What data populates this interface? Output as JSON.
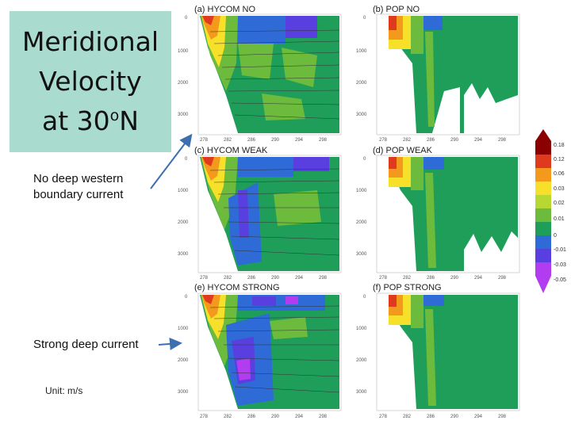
{
  "title": {
    "line1": "Meridional",
    "line2": "Velocity",
    "line3_prefix": "at 30",
    "line3_sup": "o",
    "line3_suffix": "N"
  },
  "notes": {
    "no_deep": [
      "No deep western",
      "boundary current"
    ],
    "strong": "Strong deep current",
    "unit": "Unit: m/s"
  },
  "panels": [
    {
      "id": "a",
      "label": "(a) HYCOM NO"
    },
    {
      "id": "b",
      "label": "(b) POP NO"
    },
    {
      "id": "c",
      "label": "(c) HYCOM WEAK"
    },
    {
      "id": "d",
      "label": "(d) POP WEAK"
    },
    {
      "id": "e",
      "label": "(e) HYCOM STRONG"
    },
    {
      "id": "f",
      "label": "(f) POP STRONG"
    }
  ],
  "depth_ticks": [
    "0",
    "1000",
    "2000",
    "3000"
  ],
  "lon_ticks_hycom": [
    "278",
    "282",
    "286",
    "290",
    "294",
    "298"
  ],
  "lon_ticks_pop": [
    "278",
    "282",
    "286",
    "290",
    "294",
    "298"
  ],
  "colorbar": {
    "labels": [
      "0.18",
      "0.12",
      "0.06",
      "0.03",
      "0.02",
      "0.01",
      "0",
      "-0.01",
      "-0.03",
      "-0.05"
    ],
    "colors": [
      "#8b0000",
      "#e03a1e",
      "#f39a1c",
      "#f7e02a",
      "#b7d832",
      "#6dbb3c",
      "#1f9e5a",
      "#2f6bd6",
      "#5a3fe0",
      "#b23df0"
    ]
  },
  "colors": {
    "title_bg": "#a9dccf",
    "arrow": "#3d6fb0",
    "ocean_green": "#1f9e5a"
  }
}
